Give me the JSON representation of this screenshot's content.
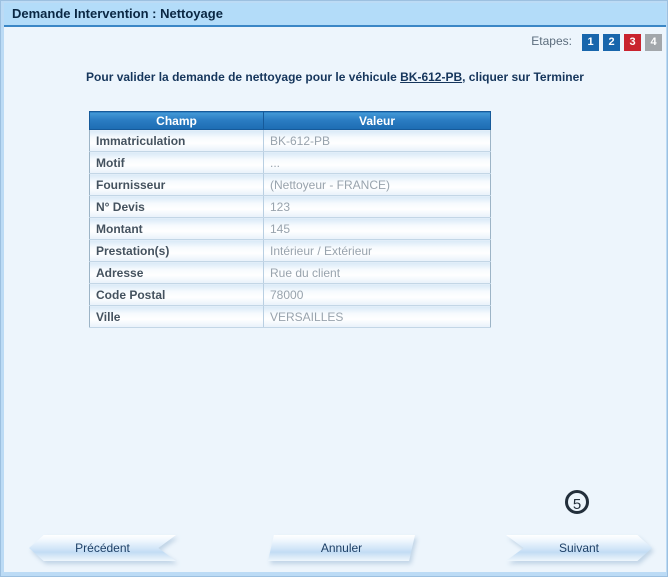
{
  "window": {
    "title": "Demande Intervention : Nettoyage"
  },
  "steps": {
    "label": "Etapes:",
    "items": [
      {
        "label": "1",
        "variant": "blue"
      },
      {
        "label": "2",
        "variant": "blue"
      },
      {
        "label": "3",
        "variant": "red"
      },
      {
        "label": "4",
        "variant": "gray"
      }
    ]
  },
  "instruction": {
    "prefix": "Pour valider la demande de nettoyage pour le véhicule ",
    "vehicle": "BK-612-PB",
    "suffix": ", cliquer sur Terminer"
  },
  "table": {
    "headers": [
      "Champ",
      "Valeur"
    ],
    "rows": [
      [
        "Immatriculation",
        "BK-612-PB"
      ],
      [
        "Motif",
        "..."
      ],
      [
        "Fournisseur",
        "(Nettoyeur - FRANCE)"
      ],
      [
        "N° Devis",
        "123"
      ],
      [
        "Montant",
        "145"
      ],
      [
        "Prestation(s)",
        "Intérieur / Extérieur"
      ],
      [
        "Adresse",
        "Rue du client"
      ],
      [
        "Code Postal",
        "78000"
      ],
      [
        "Ville",
        "VERSAILLES"
      ]
    ]
  },
  "buttons": {
    "previous": "Précédent",
    "cancel": "Annuler",
    "next": "Suivant"
  },
  "marker": {
    "value": "5"
  },
  "colors": {
    "title_bar": "#b3dcf9",
    "header_blue": "#2a7cc2",
    "step_done": "#1866ac",
    "step_current": "#c9232e",
    "step_pending": "#a3a7ab",
    "content_bg": "#edf5fc"
  }
}
